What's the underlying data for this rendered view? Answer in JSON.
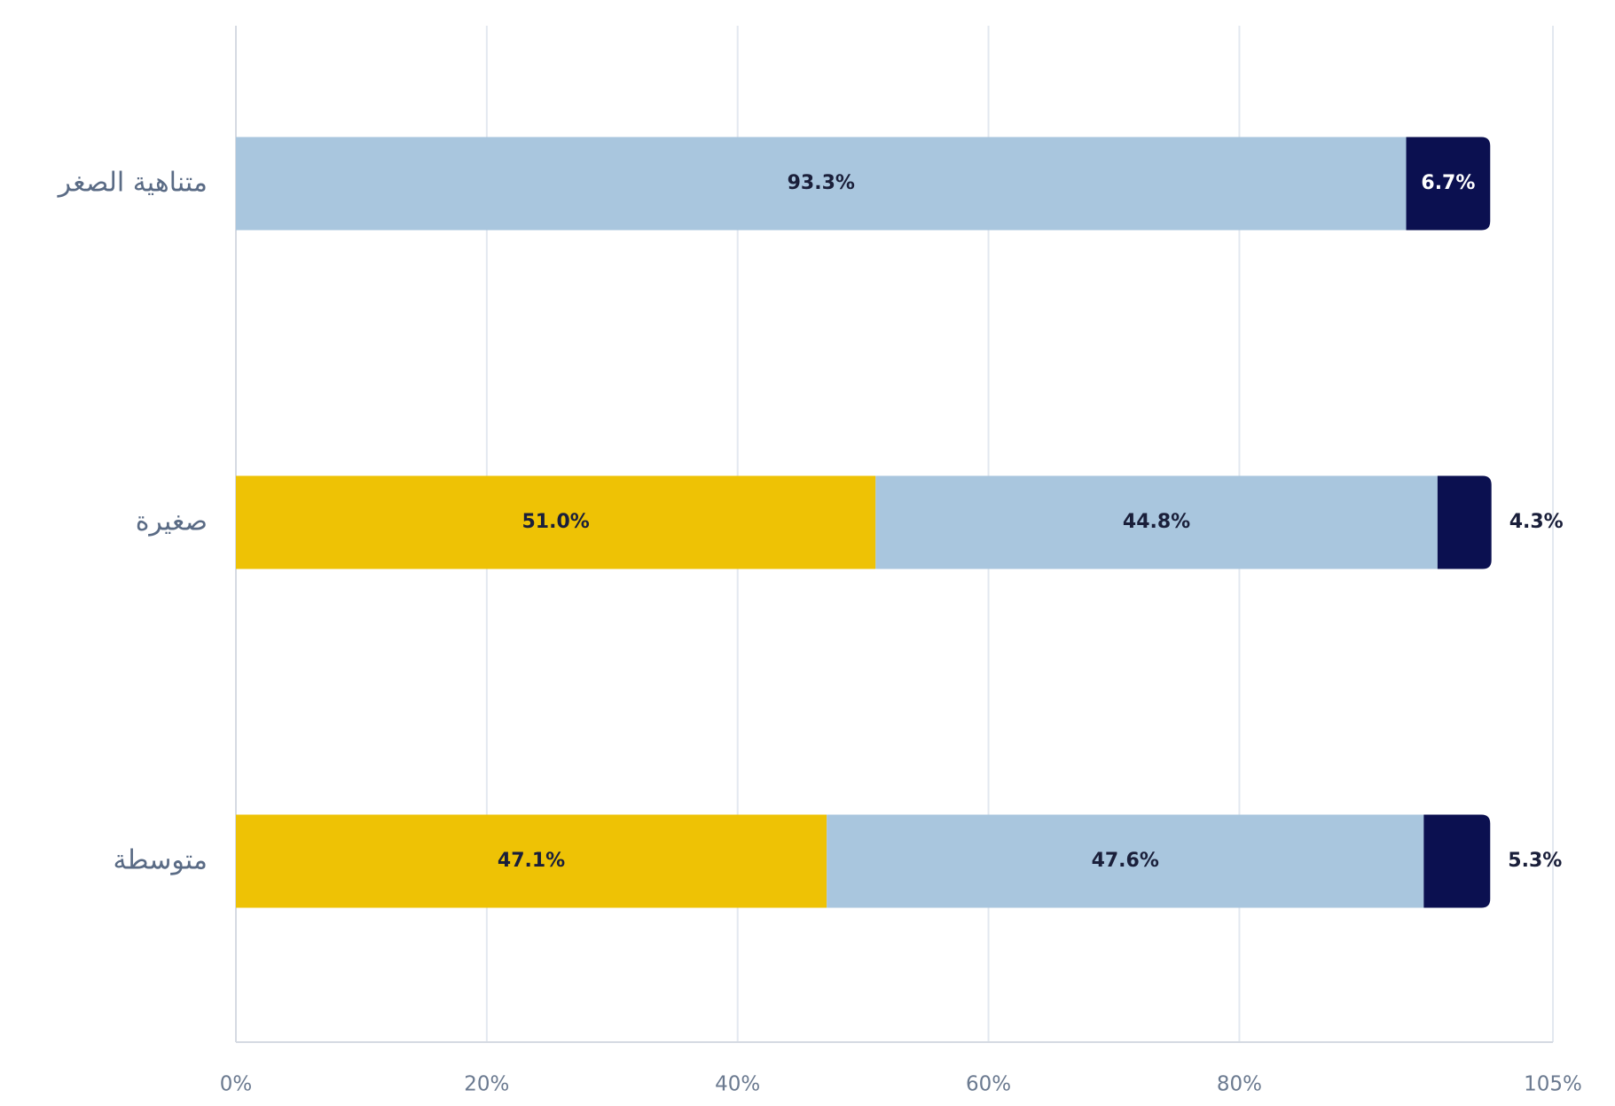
{
  "chart_data": {
    "type": "stacked-bar-horizontal",
    "categories": [
      "متناهية الصغر",
      "صغيرة",
      "متوسطة"
    ],
    "series": [
      {
        "color": "#eec205",
        "values": [
          0,
          51.0,
          47.1
        ],
        "value_labels": [
          null,
          "51.0%",
          "47.1%"
        ]
      },
      {
        "color": "#a9c6de",
        "values": [
          93.3,
          44.8,
          47.6
        ],
        "value_labels": [
          "93.3%",
          "44.8%",
          "47.6%"
        ]
      },
      {
        "color": "#0b1050",
        "values": [
          6.7,
          4.3,
          5.3
        ],
        "value_labels": [
          "6.7%",
          "4.3%",
          "5.3%"
        ]
      }
    ],
    "xlim": [
      0,
      105
    ],
    "xticks": [
      {
        "value": 0,
        "label": "0%"
      },
      {
        "value": 20,
        "label": "20%"
      },
      {
        "value": 40,
        "label": "40%"
      },
      {
        "value": 60,
        "label": "60%"
      },
      {
        "value": 80,
        "label": "80%"
      },
      {
        "value": 105,
        "label": "105%"
      }
    ],
    "grid": true
  }
}
